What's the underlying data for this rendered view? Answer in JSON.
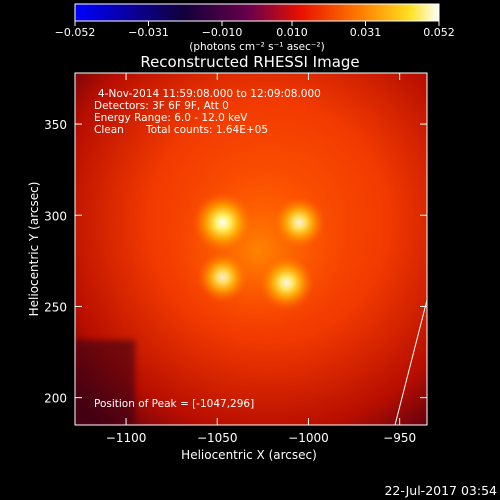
{
  "chart_data": {
    "type": "heatmap",
    "title": "Reconstructed RHESSI Image",
    "xlabel": "Heliocentric X (arcsec)",
    "ylabel": "Heliocentric Y (arcsec)",
    "xlim": [
      -1128,
      -935
    ],
    "ylim": [
      185,
      378
    ],
    "x_ticks": [
      -1100,
      -1050,
      -1000,
      -950
    ],
    "x_tick_labels": [
      "−1100",
      "−1050",
      "−1000",
      "−950"
    ],
    "y_ticks": [
      200,
      250,
      300,
      350
    ],
    "y_tick_labels": [
      "200",
      "250",
      "300",
      "350"
    ],
    "colorbar": {
      "colormap": "blue-black-red-yellow-white",
      "range": [
        -0.052,
        0.052
      ],
      "ticks": [
        -0.052,
        -0.031,
        -0.01,
        0.01,
        0.031,
        0.052
      ],
      "tick_labels": [
        "−0.052",
        "−0.031",
        "−0.010",
        "0.010",
        "0.031",
        "0.052"
      ],
      "unit_label": "(photons cm⁻² s⁻¹ asec⁻²)"
    },
    "annotations": {
      "time_range": "4-Nov-2014 11:59:08.000 to 12:09:08.000",
      "detectors": "Detectors: 3F 6F 9F, Att 0",
      "energy_range": "Energy Range: 6.0 - 12.0 keV",
      "method": "Clean",
      "total_counts": "Total counts: 1.64E+05",
      "peak_position": "Position of Peak = [-1047,296]"
    },
    "sources": [
      {
        "x": -1047,
        "y": 296,
        "relative_intensity": 1.0
      },
      {
        "x": -1005,
        "y": 296,
        "relative_intensity": 0.75
      },
      {
        "x": -1047,
        "y": 266,
        "relative_intensity": 0.7
      },
      {
        "x": -1012,
        "y": 263,
        "relative_intensity": 0.85
      }
    ],
    "grid": false
  },
  "footer": {
    "timestamp": "22-Jul-2017 03:54"
  }
}
